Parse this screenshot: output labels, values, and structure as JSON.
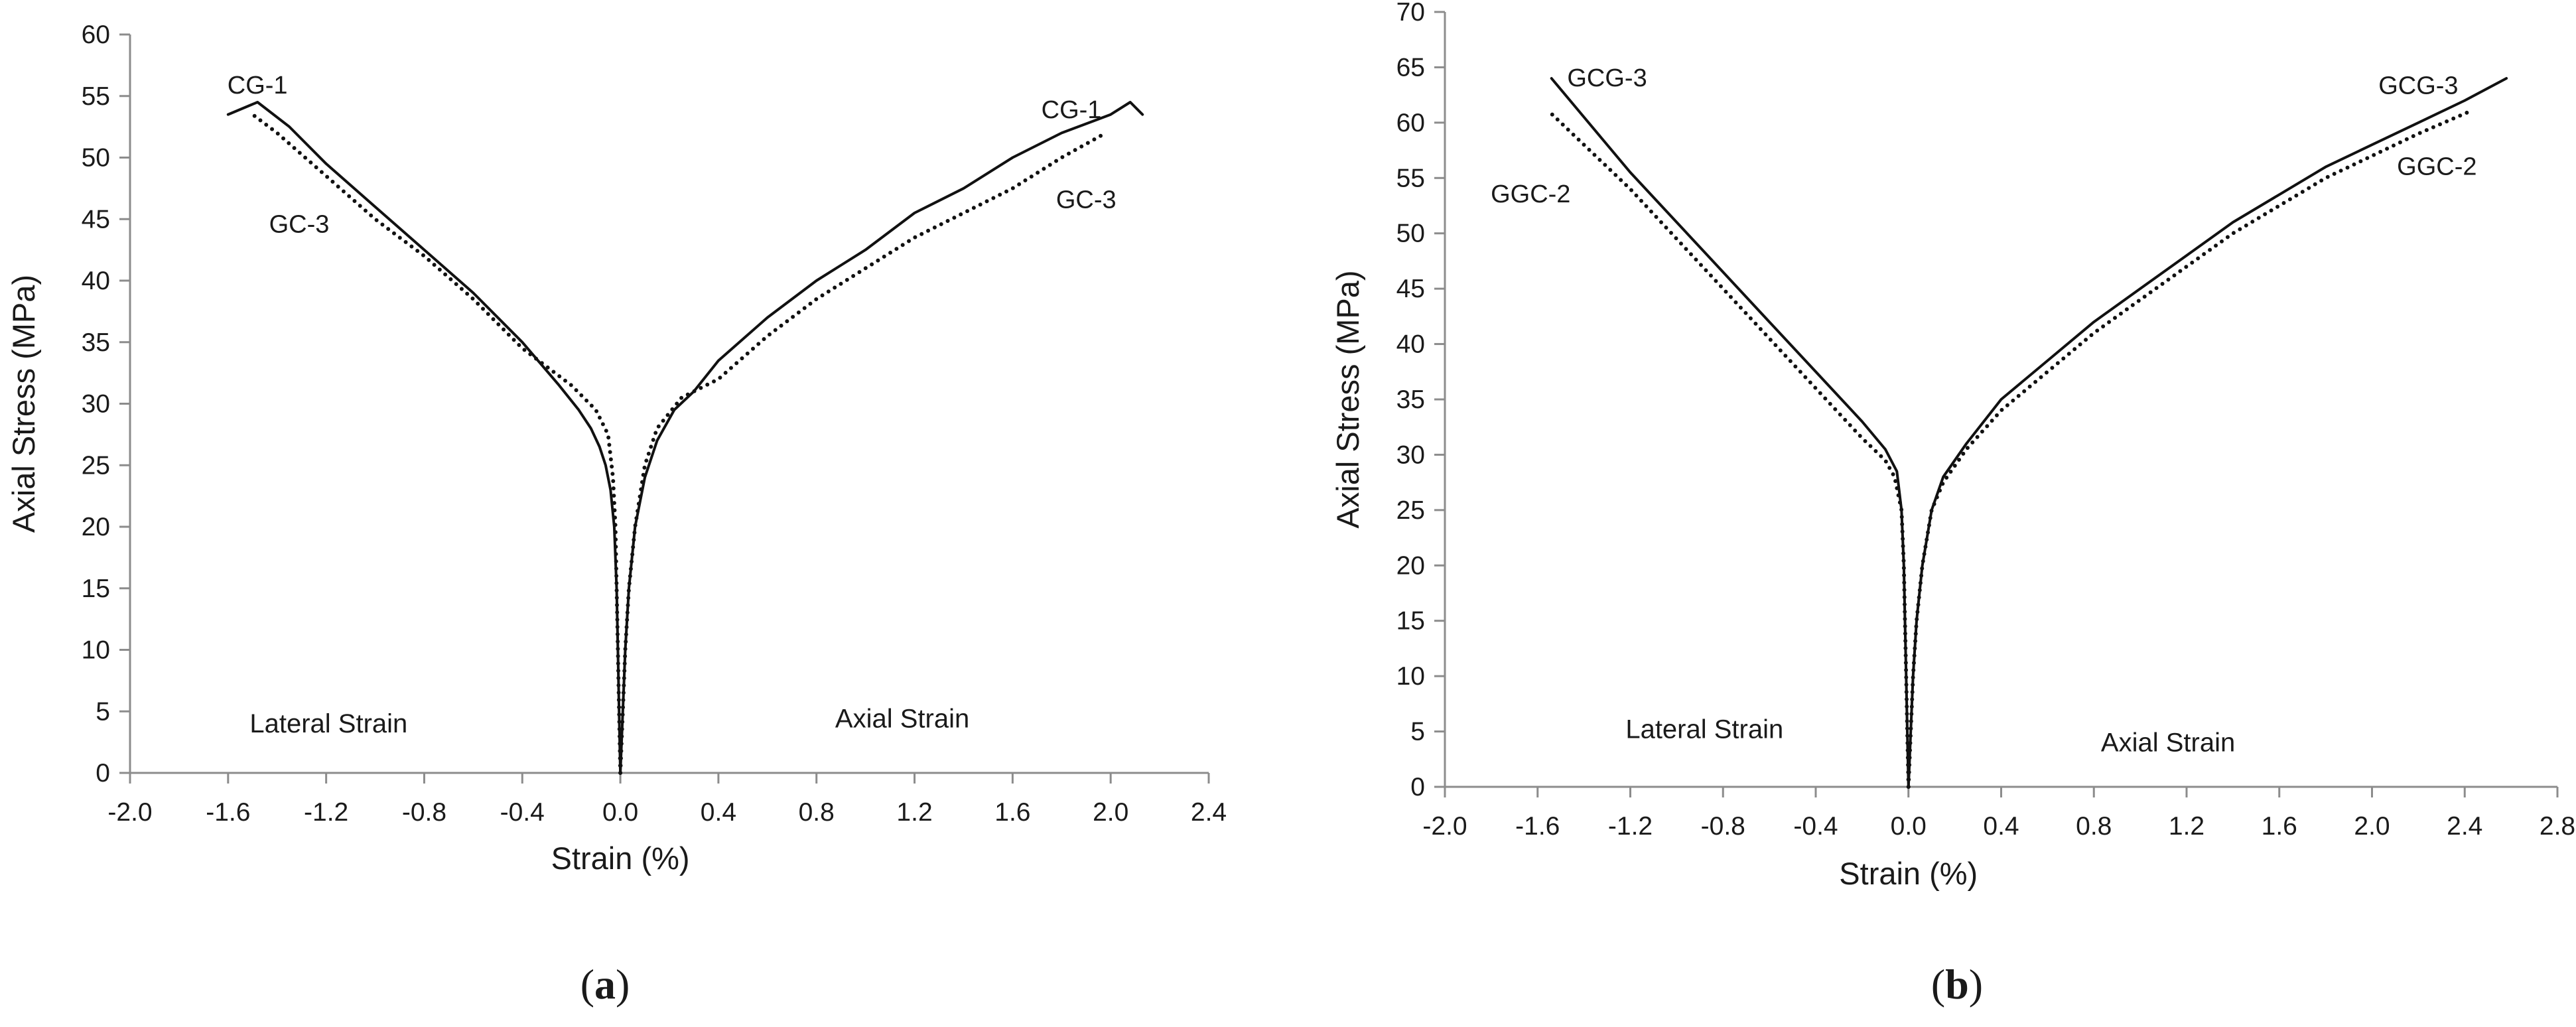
{
  "figure": {
    "panels": [
      {
        "label_open": "(",
        "label_letter": "a",
        "label_close": ")"
      },
      {
        "label_open": "(",
        "label_letter": "b",
        "label_close": ")"
      }
    ]
  },
  "chart_data": [
    {
      "type": "line",
      "panel": "a",
      "title": "",
      "xlabel": "Strain (%)",
      "ylabel": "Axial Stress (MPa)",
      "xlim": [
        -2.0,
        2.4
      ],
      "ylim": [
        0,
        60
      ],
      "xticks": [
        -2.0,
        -1.6,
        -1.2,
        -0.8,
        -0.4,
        0.0,
        0.4,
        0.8,
        1.2,
        1.6,
        2.0,
        2.4
      ],
      "xtick_labels": [
        "-2.0",
        "-1.6",
        "-1.2",
        "-0.8",
        "-0.4",
        "0.0",
        "0.4",
        "0.8",
        "1.2",
        "1.6",
        "2.0",
        "2.4"
      ],
      "yticks": [
        0,
        5,
        10,
        15,
        20,
        25,
        30,
        35,
        40,
        45,
        50,
        55,
        60
      ],
      "ytick_labels": [
        "0",
        "5",
        "10",
        "15",
        "20",
        "25",
        "30",
        "35",
        "40",
        "45",
        "50",
        "55",
        "60"
      ],
      "grid": false,
      "series": [
        {
          "name": "CG-1",
          "style": "solid",
          "lateral": [
            [
              0,
              0
            ],
            [
              -0.005,
              5
            ],
            [
              -0.01,
              10
            ],
            [
              -0.015,
              15
            ],
            [
              -0.025,
              20
            ],
            [
              -0.04,
              23
            ],
            [
              -0.06,
              25
            ],
            [
              -0.085,
              26.5
            ],
            [
              -0.12,
              28
            ],
            [
              -0.17,
              29.5
            ],
            [
              -0.25,
              31.5
            ],
            [
              -0.4,
              35
            ],
            [
              -0.6,
              39
            ],
            [
              -0.8,
              42.5
            ],
            [
              -1.0,
              46
            ],
            [
              -1.2,
              49.5
            ],
            [
              -1.35,
              52.5
            ],
            [
              -1.48,
              54.5
            ],
            [
              -1.6,
              53.5
            ]
          ],
          "axial": [
            [
              0,
              0
            ],
            [
              0.01,
              5
            ],
            [
              0.02,
              10
            ],
            [
              0.035,
              15
            ],
            [
              0.06,
              20
            ],
            [
              0.1,
              24
            ],
            [
              0.15,
              27
            ],
            [
              0.22,
              29.5
            ],
            [
              0.3,
              31
            ],
            [
              0.4,
              33.5
            ],
            [
              0.6,
              37
            ],
            [
              0.8,
              40
            ],
            [
              1.0,
              42.5
            ],
            [
              1.2,
              45.5
            ],
            [
              1.4,
              47.5
            ],
            [
              1.6,
              50
            ],
            [
              1.8,
              52
            ],
            [
              2.0,
              53.5
            ],
            [
              2.08,
              54.5
            ],
            [
              2.13,
              53.5
            ]
          ]
        },
        {
          "name": "GC-3",
          "style": "dotted",
          "lateral": [
            [
              0,
              0
            ],
            [
              -0.005,
              5
            ],
            [
              -0.01,
              10
            ],
            [
              -0.015,
              15
            ],
            [
              -0.02,
              20
            ],
            [
              -0.03,
              24
            ],
            [
              -0.05,
              27.5
            ],
            [
              -0.1,
              29.5
            ],
            [
              -0.2,
              31.5
            ],
            [
              -0.4,
              34.5
            ],
            [
              -0.6,
              38.5
            ],
            [
              -0.8,
              42
            ],
            [
              -1.0,
              45
            ],
            [
              -1.2,
              48.5
            ],
            [
              -1.4,
              52
            ],
            [
              -1.5,
              53.5
            ]
          ],
          "axial": [
            [
              0,
              0
            ],
            [
              0.01,
              5
            ],
            [
              0.02,
              10
            ],
            [
              0.035,
              15
            ],
            [
              0.06,
              20
            ],
            [
              0.1,
              25
            ],
            [
              0.15,
              28
            ],
            [
              0.25,
              30.5
            ],
            [
              0.4,
              32
            ],
            [
              0.6,
              35.5
            ],
            [
              0.8,
              38.5
            ],
            [
              1.0,
              41
            ],
            [
              1.2,
              43.5
            ],
            [
              1.4,
              45.5
            ],
            [
              1.6,
              47.5
            ],
            [
              1.8,
              50
            ],
            [
              1.98,
              52
            ]
          ]
        }
      ],
      "annotations": [
        {
          "text": "CG-1",
          "x": -1.48,
          "y": 55.2
        },
        {
          "text": "GC-3",
          "x": -1.31,
          "y": 43.9
        },
        {
          "text": "CG-1",
          "x": 1.84,
          "y": 53.2
        },
        {
          "text": "GC-3",
          "x": 1.9,
          "y": 45.9
        },
        {
          "text": "Lateral Strain",
          "x": -1.19,
          "y": 3.3
        },
        {
          "text": "Axial Strain",
          "x": 1.15,
          "y": 3.7
        }
      ]
    },
    {
      "type": "line",
      "panel": "b",
      "title": "",
      "xlabel": "Strain (%)",
      "ylabel": "Axial Stress  (MPa)",
      "xlim": [
        -2.0,
        2.8
      ],
      "ylim": [
        0,
        70
      ],
      "xticks": [
        -2.0,
        -1.6,
        -1.2,
        -0.8,
        -0.4,
        0.0,
        0.4,
        0.8,
        1.2,
        1.6,
        2.0,
        2.4,
        2.8
      ],
      "xtick_labels": [
        "-2.0",
        "-1.6",
        "-1.2",
        "-0.8",
        "-0.4",
        "0.0",
        "0.4",
        "0.8",
        "1.2",
        "1.6",
        "2.0",
        "2.4",
        "2.8"
      ],
      "yticks": [
        0,
        5,
        10,
        15,
        20,
        25,
        30,
        35,
        40,
        45,
        50,
        55,
        60,
        65,
        70
      ],
      "ytick_labels": [
        "0",
        "5",
        "10",
        "15",
        "20",
        "25",
        "30",
        "35",
        "40",
        "45",
        "50",
        "55",
        "60",
        "65",
        "70"
      ],
      "grid": false,
      "series": [
        {
          "name": "GCG-3",
          "style": "solid",
          "lateral": [
            [
              0,
              0
            ],
            [
              -0.005,
              5
            ],
            [
              -0.01,
              10
            ],
            [
              -0.015,
              15
            ],
            [
              -0.02,
              20
            ],
            [
              -0.03,
              25
            ],
            [
              -0.05,
              28.5
            ],
            [
              -0.1,
              30.5
            ],
            [
              -0.2,
              33
            ],
            [
              -0.4,
              37.5
            ],
            [
              -0.6,
              42
            ],
            [
              -0.8,
              46.5
            ],
            [
              -1.0,
              51
            ],
            [
              -1.2,
              55.5
            ],
            [
              -1.4,
              60.5
            ],
            [
              -1.54,
              64
            ]
          ],
          "axial": [
            [
              0,
              0
            ],
            [
              0.01,
              5
            ],
            [
              0.02,
              10
            ],
            [
              0.035,
              15
            ],
            [
              0.06,
              20
            ],
            [
              0.1,
              25
            ],
            [
              0.15,
              28
            ],
            [
              0.25,
              31
            ],
            [
              0.4,
              35
            ],
            [
              0.6,
              38.5
            ],
            [
              0.8,
              42
            ],
            [
              1.0,
              45
            ],
            [
              1.2,
              48
            ],
            [
              1.4,
              51
            ],
            [
              1.6,
              53.5
            ],
            [
              1.8,
              56
            ],
            [
              2.0,
              58
            ],
            [
              2.2,
              60
            ],
            [
              2.4,
              62
            ],
            [
              2.58,
              64
            ]
          ]
        },
        {
          "name": "GGC-2",
          "style": "dotted",
          "lateral": [
            [
              0,
              0
            ],
            [
              -0.005,
              5
            ],
            [
              -0.01,
              10
            ],
            [
              -0.015,
              15
            ],
            [
              -0.02,
              20
            ],
            [
              -0.03,
              25
            ],
            [
              -0.06,
              28
            ],
            [
              -0.1,
              29.5
            ],
            [
              -0.2,
              31.5
            ],
            [
              -0.4,
              36
            ],
            [
              -0.6,
              40.5
            ],
            [
              -0.8,
              45
            ],
            [
              -1.0,
              49.5
            ],
            [
              -1.2,
              54
            ],
            [
              -1.4,
              58
            ],
            [
              -1.55,
              61
            ]
          ],
          "axial": [
            [
              0,
              0
            ],
            [
              0.01,
              5
            ],
            [
              0.02,
              10
            ],
            [
              0.035,
              15
            ],
            [
              0.06,
              20
            ],
            [
              0.1,
              25
            ],
            [
              0.15,
              27.5
            ],
            [
              0.25,
              30.5
            ],
            [
              0.4,
              34
            ],
            [
              0.6,
              37.5
            ],
            [
              0.8,
              41
            ],
            [
              1.0,
              44
            ],
            [
              1.2,
              47
            ],
            [
              1.4,
              50
            ],
            [
              1.6,
              52.5
            ],
            [
              1.8,
              55
            ],
            [
              2.0,
              57
            ],
            [
              2.2,
              59
            ],
            [
              2.42,
              61
            ]
          ]
        }
      ],
      "annotations": [
        {
          "text": "GCG-3",
          "x": -1.3,
          "y": 63.3
        },
        {
          "text": "GGC-2",
          "x": -1.63,
          "y": 52.8
        },
        {
          "text": "GCG-3",
          "x": 2.2,
          "y": 62.6
        },
        {
          "text": "GGC-2",
          "x": 2.28,
          "y": 55.3
        },
        {
          "text": "Lateral Strain",
          "x": -0.88,
          "y": 4.4
        },
        {
          "text": "Axial Strain",
          "x": 1.12,
          "y": 3.2
        }
      ]
    }
  ]
}
